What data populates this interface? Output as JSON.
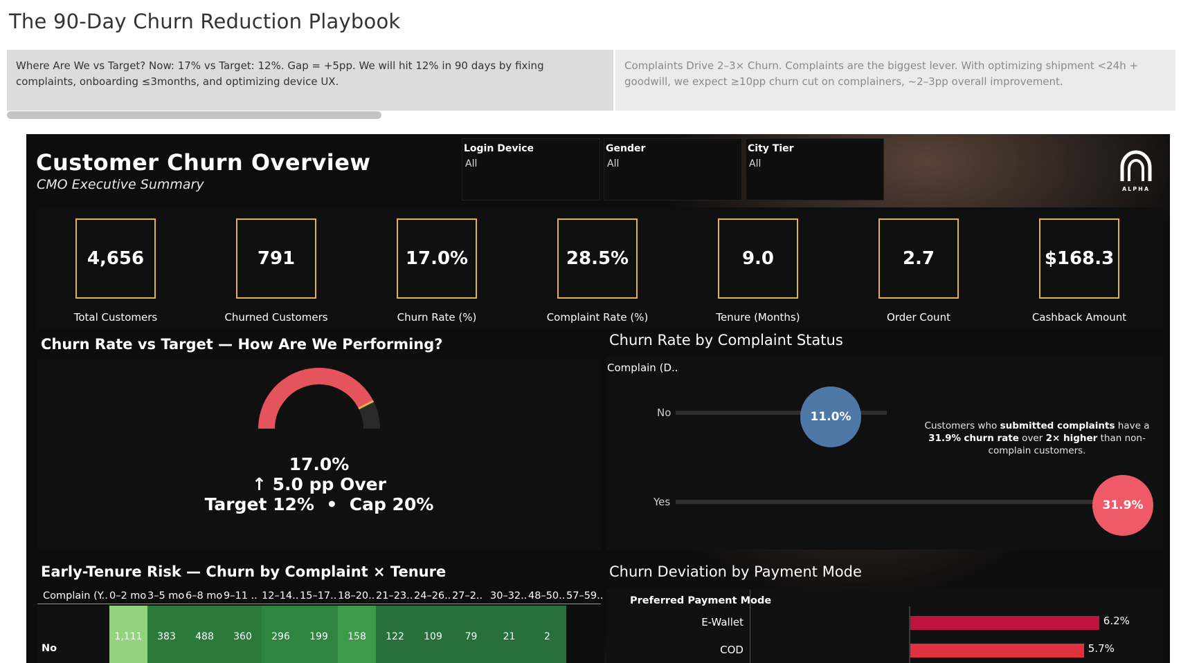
{
  "story": {
    "title": "The 90-Day Churn Reduction Playbook",
    "points": [
      "Where Are We vs Target? Now: 17% vs Target: 12%. Gap = +5pp. We will hit 12% in 90 days by fixing complaints, onboarding ≤3months, and optimizing device UX.",
      "Complaints Drive 2–3× Churn. Complaints are the biggest lever. With optimizing shipment <24h + goodwill, we expect ≥10pp churn cut on complainers, ~2–3pp overall improvement."
    ]
  },
  "dashboard": {
    "title": "Customer Churn Overview",
    "subtitle": "CMO Executive Summary",
    "logo_text": "ALPHA"
  },
  "filters": [
    {
      "label": "Login Device",
      "value": "All"
    },
    {
      "label": "Gender",
      "value": "All"
    },
    {
      "label": "City Tier",
      "value": "All"
    }
  ],
  "kpis": [
    {
      "value": "4,656",
      "label": "Total Customers"
    },
    {
      "value": "791",
      "label": "Churned Customers"
    },
    {
      "value": "17.0%",
      "label": "Churn Rate (%)"
    },
    {
      "value": "28.5%",
      "label": "Complaint Rate (%)"
    },
    {
      "value": "9.0",
      "label": "Tenure (Months)"
    },
    {
      "value": "2.7",
      "label": "Order Count"
    },
    {
      "value": "$168.3",
      "label": "Cashback Amount"
    }
  ],
  "gauge": {
    "title": "Churn Rate vs Target — How Are We Performing?",
    "value": 17.0,
    "target": 12,
    "cap": 20,
    "line1": "17.0%",
    "line2": "↑ 5.0 pp Over",
    "line3": "Target 12%  •  Cap 20%",
    "colors": {
      "fill": "#e5535d",
      "rest": "#2a2a2a",
      "marker": "#e3b547"
    }
  },
  "complaint": {
    "title": "Churn Rate by Complaint Status",
    "axis_label": "Complain (D..",
    "rows": [
      {
        "label": "No",
        "value": "11.0%",
        "pct": 11.0,
        "color": "#4e79a7"
      },
      {
        "label": "Yes",
        "value": "31.9%",
        "pct": 31.9,
        "color": "#ef5a69"
      }
    ],
    "note_parts": [
      "Customers who ",
      "submitted complaints",
      " have a ",
      "31.9%",
      "churn rate",
      " over ",
      "2× higher",
      " than non-complain customers."
    ]
  },
  "heatmap": {
    "title": "Early-Tenure Risk — Churn by Complaint × Tenure",
    "row_header": "Complain (Y..",
    "columns": [
      "0–2 mo",
      "3–5 mo",
      "6–8 mo",
      "9–11 ..",
      "12–14..",
      "15–17..",
      "18–20..",
      "21–23..",
      "24–26..",
      "27–2..",
      "30–32..",
      "48–50..",
      "57–59.."
    ],
    "rows": [
      {
        "label": "No",
        "values": [
          "1,111",
          "383",
          "488",
          "360",
          "296",
          "199",
          "158",
          "122",
          "109",
          "79",
          "21",
          "2",
          ""
        ]
      }
    ],
    "colors": [
      "#93d37f",
      "#2b7a3b",
      "#2b7a3b",
      "#2b7a3b",
      "#2f8540",
      "#2f8540",
      "#3d9a4c",
      "#26703a",
      "#26703a",
      "#26703a",
      "#26703a",
      "#26703a",
      "#0e0e0e"
    ]
  },
  "payment": {
    "title": "Churn Deviation by Payment Mode",
    "axis_label": "Preferred Payment Mode",
    "rows": [
      {
        "label": "E-Wallet",
        "value": "6.2%",
        "pct": 6.2,
        "color": "#c0123f"
      },
      {
        "label": "COD",
        "value": "5.7%",
        "pct": 5.7,
        "color": "#e0313f"
      }
    ]
  }
}
